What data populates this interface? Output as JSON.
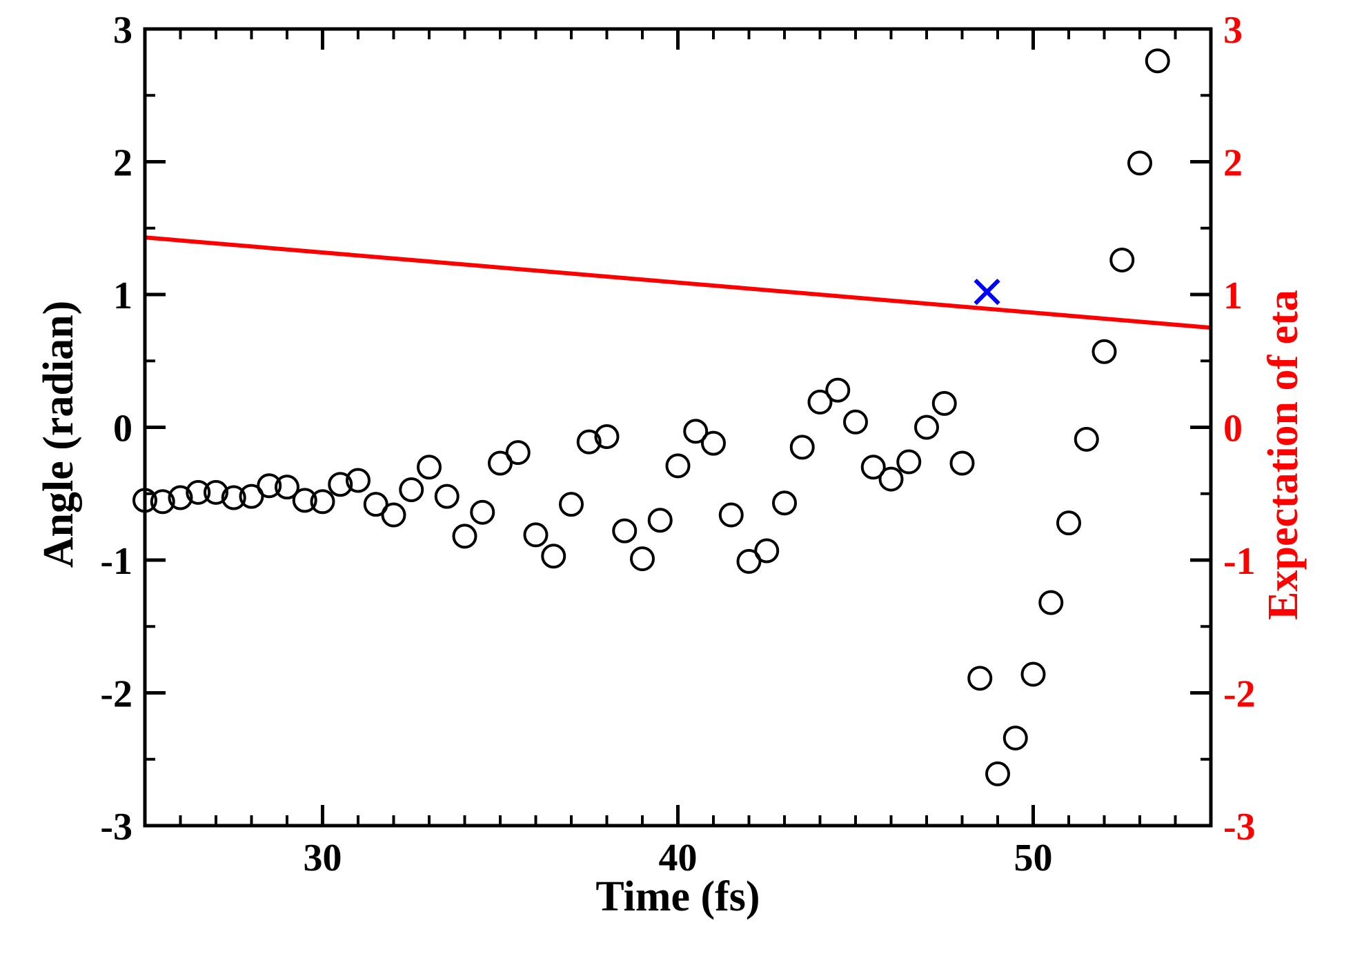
{
  "chart_data": {
    "type": "scatter",
    "title": "",
    "xlabel": "Time (fs)",
    "ylabel": "Angle (radian)",
    "ylabel_right": "Expectation of eta",
    "xlim": [
      25,
      55
    ],
    "ylim": [
      -3,
      3
    ],
    "ylim_right": [
      -3,
      3
    ],
    "x_ticks": [
      30,
      40,
      50
    ],
    "x_tick_labels": [
      "30",
      "40",
      "50"
    ],
    "y_ticks": [
      -3,
      -2,
      -1,
      0,
      1,
      2,
      3
    ],
    "y_tick_labels": [
      "-3",
      "-2",
      "-1",
      "0",
      "1",
      "2",
      "3"
    ],
    "y_right_ticks": [
      -3,
      -2,
      -1,
      0,
      1,
      2,
      3
    ],
    "y_right_tick_labels": [
      "-3",
      "-2",
      "-1",
      "0",
      "1",
      "2",
      "3"
    ],
    "grid": false,
    "colors": {
      "angle": "#000000",
      "eta": "#ff0000",
      "marker": "#0000ff",
      "axis": "#000000"
    },
    "series": [
      {
        "name": "Angle",
        "axis": "left",
        "marker": "open-circle",
        "x": [
          25.0,
          25.5,
          26.0,
          26.5,
          27.0,
          27.5,
          28.0,
          28.5,
          29.0,
          29.5,
          30.0,
          30.5,
          31.0,
          31.5,
          32.0,
          32.5,
          33.0,
          33.5,
          34.0,
          34.5,
          35.0,
          35.5,
          36.0,
          36.5,
          37.0,
          37.5,
          38.0,
          38.5,
          39.0,
          39.5,
          40.0,
          40.5,
          41.0,
          41.5,
          42.0,
          42.5,
          43.0,
          43.5,
          44.0,
          44.5,
          45.0,
          45.5,
          46.0,
          46.5,
          47.0,
          47.5,
          48.0,
          48.5,
          49.0,
          49.5,
          50.0,
          50.5,
          51.0,
          51.5,
          52.0,
          52.5,
          53.0,
          53.5
        ],
        "y": [
          -0.55,
          -0.56,
          -0.53,
          -0.49,
          -0.49,
          -0.53,
          -0.52,
          -0.44,
          -0.45,
          -0.55,
          -0.56,
          -0.43,
          -0.4,
          -0.58,
          -0.66,
          -0.47,
          -0.3,
          -0.52,
          -0.82,
          -0.64,
          -0.27,
          -0.19,
          -0.81,
          -0.97,
          -0.58,
          -0.11,
          -0.07,
          -0.78,
          -0.99,
          -0.7,
          -0.29,
          -0.03,
          -0.12,
          -0.66,
          -1.01,
          -0.93,
          -0.57,
          -0.15,
          0.19,
          0.28,
          0.04,
          -0.3,
          -0.39,
          -0.26,
          0.0,
          0.18,
          -0.27,
          -1.89,
          -2.61,
          -2.34,
          -1.86,
          -1.32,
          -0.72,
          -0.09,
          0.57,
          1.26,
          1.99,
          2.76
        ]
      },
      {
        "name": "Expectation of eta",
        "axis": "right",
        "marker": "line",
        "x": [
          25.0,
          55.0
        ],
        "y": [
          1.43,
          0.75
        ]
      },
      {
        "name": "Marker",
        "axis": "left",
        "marker": "x",
        "x": [
          48.7
        ],
        "y": [
          1.02
        ]
      }
    ]
  }
}
